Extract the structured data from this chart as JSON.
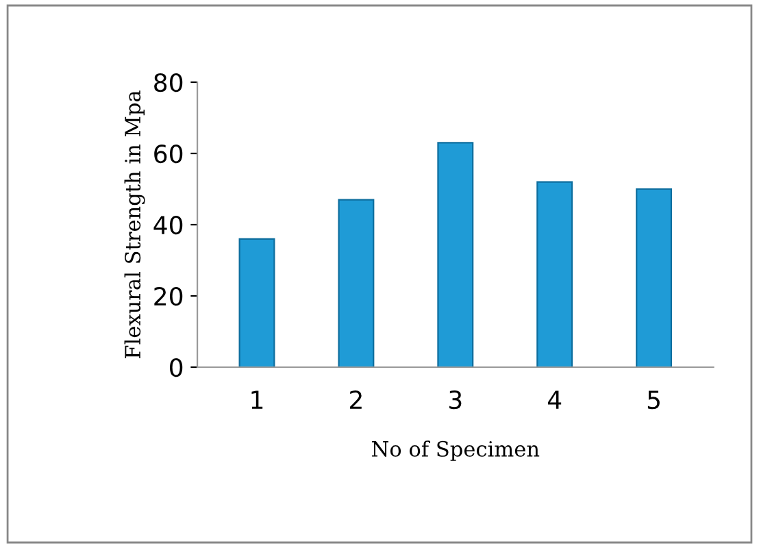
{
  "chart_data": {
    "type": "bar",
    "xlabel": "No of Specimen",
    "ylabel": "Flexural Strength in Mpa",
    "categories": [
      "1",
      "2",
      "3",
      "4",
      "5"
    ],
    "values": [
      36,
      47,
      63,
      52,
      50
    ],
    "color": "#1f9bd6",
    "ylim": [
      0,
      80
    ],
    "yticks": [
      0,
      20,
      40,
      60,
      80
    ],
    "grid": false,
    "legend": false
  }
}
